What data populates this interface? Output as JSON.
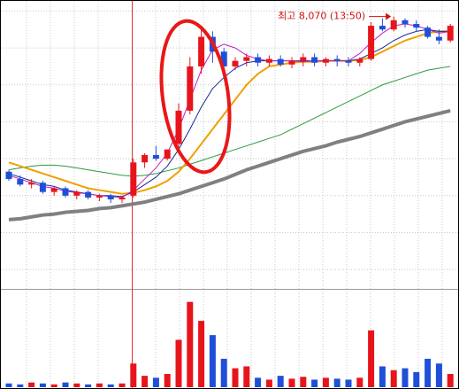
{
  "chart_data": {
    "type": "candlestick",
    "annotation": "최고 8,070 (13:50)",
    "open": [
      7230,
      7190,
      7160,
      7170,
      7120,
      7140,
      7100,
      7120,
      7090,
      7100,
      7080,
      7100,
      7280,
      7320,
      7300,
      7380,
      7560,
      7800,
      7960,
      7880,
      7800,
      7830,
      7850,
      7820,
      7840,
      7810,
      7830,
      7850,
      7820,
      7840,
      7830,
      7820,
      7840,
      8020,
      8000,
      8050,
      8030,
      8010,
      7960,
      7940
    ],
    "high": [
      7240,
      7210,
      7190,
      7180,
      7150,
      7150,
      7130,
      7130,
      7110,
      7110,
      7100,
      7300,
      7330,
      7370,
      7350,
      7600,
      7850,
      8000,
      7990,
      7900,
      7850,
      7870,
      7870,
      7860,
      7860,
      7850,
      7870,
      7870,
      7850,
      7860,
      7850,
      7850,
      8040,
      8060,
      8070,
      8060,
      8050,
      8020,
      8000,
      8030
    ],
    "low": [
      7180,
      7150,
      7140,
      7110,
      7100,
      7090,
      7080,
      7080,
      7070,
      7060,
      7060,
      7090,
      7250,
      7290,
      7290,
      7360,
      7540,
      7760,
      7820,
      7780,
      7780,
      7800,
      7800,
      7800,
      7800,
      7790,
      7800,
      7800,
      7800,
      7800,
      7800,
      7800,
      7830,
      7990,
      7990,
      8010,
      7990,
      7950,
      7920,
      7930
    ],
    "close": [
      7190,
      7160,
      7170,
      7120,
      7140,
      7100,
      7120,
      7090,
      7100,
      7080,
      7090,
      7280,
      7320,
      7300,
      7350,
      7560,
      7800,
      7960,
      7880,
      7800,
      7830,
      7850,
      7820,
      7840,
      7810,
      7830,
      7850,
      7820,
      7840,
      7830,
      7820,
      7840,
      8020,
      8000,
      8050,
      8030,
      8010,
      7960,
      7940,
      8020
    ],
    "up_color": "#e8141c",
    "down_color": "#1f4fd8",
    "ylim": [
      6600,
      8150
    ],
    "yticks": [
      6700,
      6900,
      7100,
      7300,
      7500,
      7700,
      7900,
      8100
    ],
    "grid": true,
    "series": [
      {
        "color": "#808080",
        "width": 4,
        "values": [
          6970,
          6975,
          6985,
          6995,
          7000,
          7010,
          7015,
          7020,
          7030,
          7035,
          7045,
          7055,
          7065,
          7080,
          7095,
          7110,
          7130,
          7150,
          7170,
          7190,
          7215,
          7240,
          7260,
          7280,
          7300,
          7320,
          7340,
          7355,
          7370,
          7390,
          7405,
          7420,
          7440,
          7460,
          7480,
          7500,
          7515,
          7530,
          7545,
          7560
        ]
      },
      {
        "color": "#2a9a3a",
        "width": 1,
        "values": [
          7240,
          7250,
          7260,
          7265,
          7265,
          7260,
          7250,
          7240,
          7230,
          7220,
          7210,
          7205,
          7210,
          7220,
          7235,
          7250,
          7270,
          7290,
          7310,
          7330,
          7350,
          7370,
          7390,
          7410,
          7430,
          7460,
          7490,
          7520,
          7550,
          7580,
          7610,
          7640,
          7670,
          7700,
          7720,
          7740,
          7760,
          7780,
          7790,
          7800
        ]
      },
      {
        "color": "#f0a000",
        "width": 2,
        "values": [
          7280,
          7260,
          7240,
          7220,
          7200,
          7180,
          7160,
          7140,
          7130,
          7120,
          7110,
          7115,
          7130,
          7150,
          7180,
          7230,
          7300,
          7380,
          7460,
          7540,
          7620,
          7700,
          7760,
          7800,
          7810,
          7820,
          7825,
          7825,
          7830,
          7830,
          7830,
          7835,
          7850,
          7880,
          7910,
          7940,
          7960,
          7980,
          7990,
          7990
        ]
      },
      {
        "color": "#1a2a9a",
        "width": 1,
        "values": [
          7220,
          7200,
          7180,
          7160,
          7150,
          7130,
          7120,
          7110,
          7100,
          7100,
          7095,
          7120,
          7160,
          7200,
          7260,
          7350,
          7460,
          7580,
          7680,
          7740,
          7790,
          7820,
          7830,
          7830,
          7830,
          7830,
          7830,
          7830,
          7830,
          7830,
          7830,
          7840,
          7870,
          7900,
          7940,
          7970,
          7990,
          8000,
          7990,
          7990
        ]
      },
      {
        "color": "#c020c0",
        "width": 1,
        "values": [
          7210,
          7190,
          7170,
          7150,
          7140,
          7125,
          7115,
          7110,
          7100,
          7095,
          7090,
          7130,
          7190,
          7250,
          7330,
          7460,
          7620,
          7780,
          7890,
          7920,
          7900,
          7860,
          7840,
          7830,
          7830,
          7830,
          7825,
          7830,
          7830,
          7830,
          7830,
          7870,
          7930,
          7980,
          8020,
          8030,
          8020,
          8000,
          7980,
          7990
        ]
      }
    ],
    "volume": {
      "ylim": [
        0,
        100
      ],
      "values": [
        4,
        3,
        5,
        4,
        3,
        5,
        4,
        3,
        4,
        3,
        4,
        25,
        12,
        10,
        14,
        50,
        90,
        70,
        55,
        30,
        20,
        22,
        10,
        8,
        12,
        9,
        11,
        8,
        10,
        9,
        8,
        10,
        60,
        22,
        18,
        20,
        16,
        30,
        25,
        14
      ]
    }
  }
}
